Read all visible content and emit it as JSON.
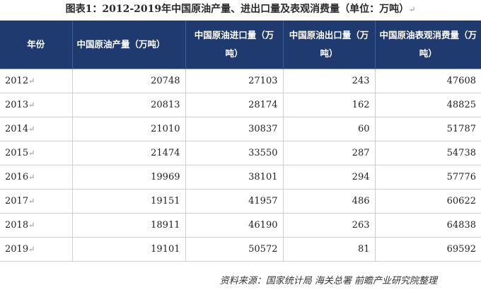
{
  "title": "图表1：2012-2019年中国原油产量、进出口量及表观消费量（单位：万吨）",
  "paragraph_mark": "↵",
  "table": {
    "headers": [
      "年份",
      "中国原油产量（万吨）",
      "中国原油进口量（万吨）",
      "中国原油出口量（万吨）",
      "中国原油表观消费量（万吨）"
    ],
    "rows": [
      [
        "2012",
        "20748",
        "27103",
        "243",
        "47608"
      ],
      [
        "2013",
        "20813",
        "28174",
        "162",
        "48825"
      ],
      [
        "2014",
        "21010",
        "30837",
        "60",
        "51787"
      ],
      [
        "2015",
        "21474",
        "33550",
        "287",
        "54738"
      ],
      [
        "2016",
        "19969",
        "38101",
        "294",
        "57776"
      ],
      [
        "2017",
        "19151",
        "41957",
        "486",
        "60622"
      ],
      [
        "2018",
        "18911",
        "46190",
        "263",
        "64838"
      ],
      [
        "2019",
        "19101",
        "50572",
        "81",
        "69592"
      ]
    ]
  },
  "source": "资料来源：国家统计局 海关总署 前瞻产业研究院整理"
}
